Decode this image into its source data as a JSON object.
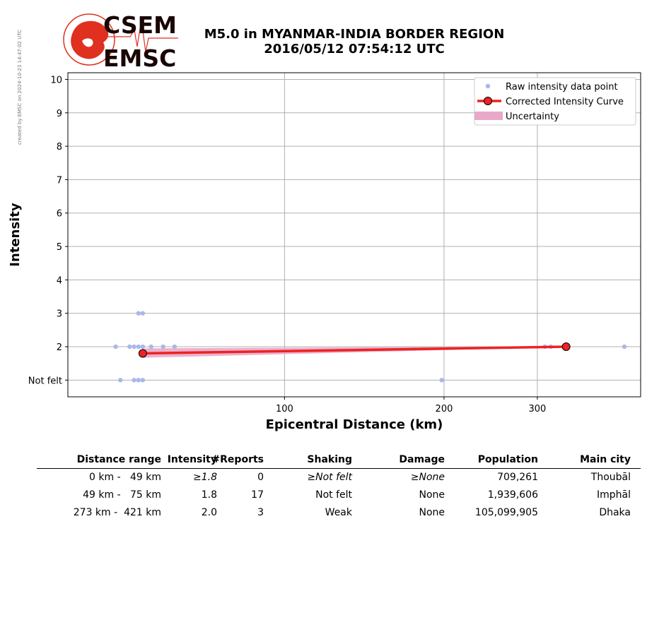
{
  "side_note": "created by EMSC on 2024-10-23 14:47:02 UTC",
  "logo": {
    "line1": "CSEM",
    "line2": "EMSC"
  },
  "title": {
    "line1": "M5.0 in MYANMAR-INDIA BORDER REGION",
    "line2": "2016/05/12 07:54:12 UTC"
  },
  "colors": {
    "raw": "#aab8e8",
    "curve": "#ee2222",
    "uncertainty": "#e8a8c8",
    "grid": "#b0b0b0"
  },
  "chart_data": {
    "type": "scatter",
    "title": "M5.0 in MYANMAR-INDIA BORDER REGION 2016/05/12 07:54:12 UTC",
    "xlabel": "Epicentral Distance (km)",
    "ylabel": "Intensity",
    "x_scale": "log",
    "x_ticks": [
      100,
      200,
      300
    ],
    "y_ticks": [
      1,
      2,
      3,
      4,
      5,
      6,
      7,
      8,
      9,
      10
    ],
    "y_tick_labels": [
      "Not felt",
      "2",
      "3",
      "4",
      "5",
      "6",
      "7",
      "8",
      "9",
      "10"
    ],
    "xlim": [
      39,
      470
    ],
    "ylim": [
      0.5,
      10.2
    ],
    "grid": true,
    "legend_position": "top-right",
    "legend": [
      "Raw intensity data point",
      "Corrected Intensity Curve",
      "Uncertainty"
    ],
    "series": [
      {
        "name": "Raw intensity data point",
        "points": [
          [
            48,
            2
          ],
          [
            51,
            2
          ],
          [
            52,
            2
          ],
          [
            53,
            2
          ],
          [
            54,
            2
          ],
          [
            56,
            2
          ],
          [
            59,
            2
          ],
          [
            62,
            2
          ],
          [
            53,
            3
          ],
          [
            54,
            3
          ],
          [
            49,
            1
          ],
          [
            52,
            1
          ],
          [
            53,
            1
          ],
          [
            54,
            1
          ],
          [
            198,
            1
          ],
          [
            310,
            2
          ],
          [
            318,
            2
          ],
          [
            438,
            2
          ]
        ]
      },
      {
        "name": "Corrected Intensity Curve",
        "points": [
          [
            54,
            1.8
          ],
          [
            340,
            2.0
          ]
        ]
      },
      {
        "name": "Uncertainty",
        "band": [
          [
            54,
            1.67,
            1.95
          ],
          [
            340,
            1.99,
            2.01
          ]
        ]
      }
    ]
  },
  "table": {
    "headers": [
      "Distance range",
      "Intensity",
      "#Reports",
      "Shaking",
      "Damage",
      "Population",
      "Main city"
    ],
    "rows": [
      [
        "0 km -   49 km",
        "≥1.8",
        "0",
        "≥Not felt",
        "≥None",
        "709,261",
        "Thoubāl"
      ],
      [
        "49 km -   75 km",
        "1.8",
        "17",
        "Not felt",
        "None",
        "1,939,606",
        "Imphāl"
      ],
      [
        "273 km -  421 km",
        "2.0",
        "3",
        "Weak",
        "None",
        "105,099,905",
        "Dhaka"
      ]
    ]
  }
}
